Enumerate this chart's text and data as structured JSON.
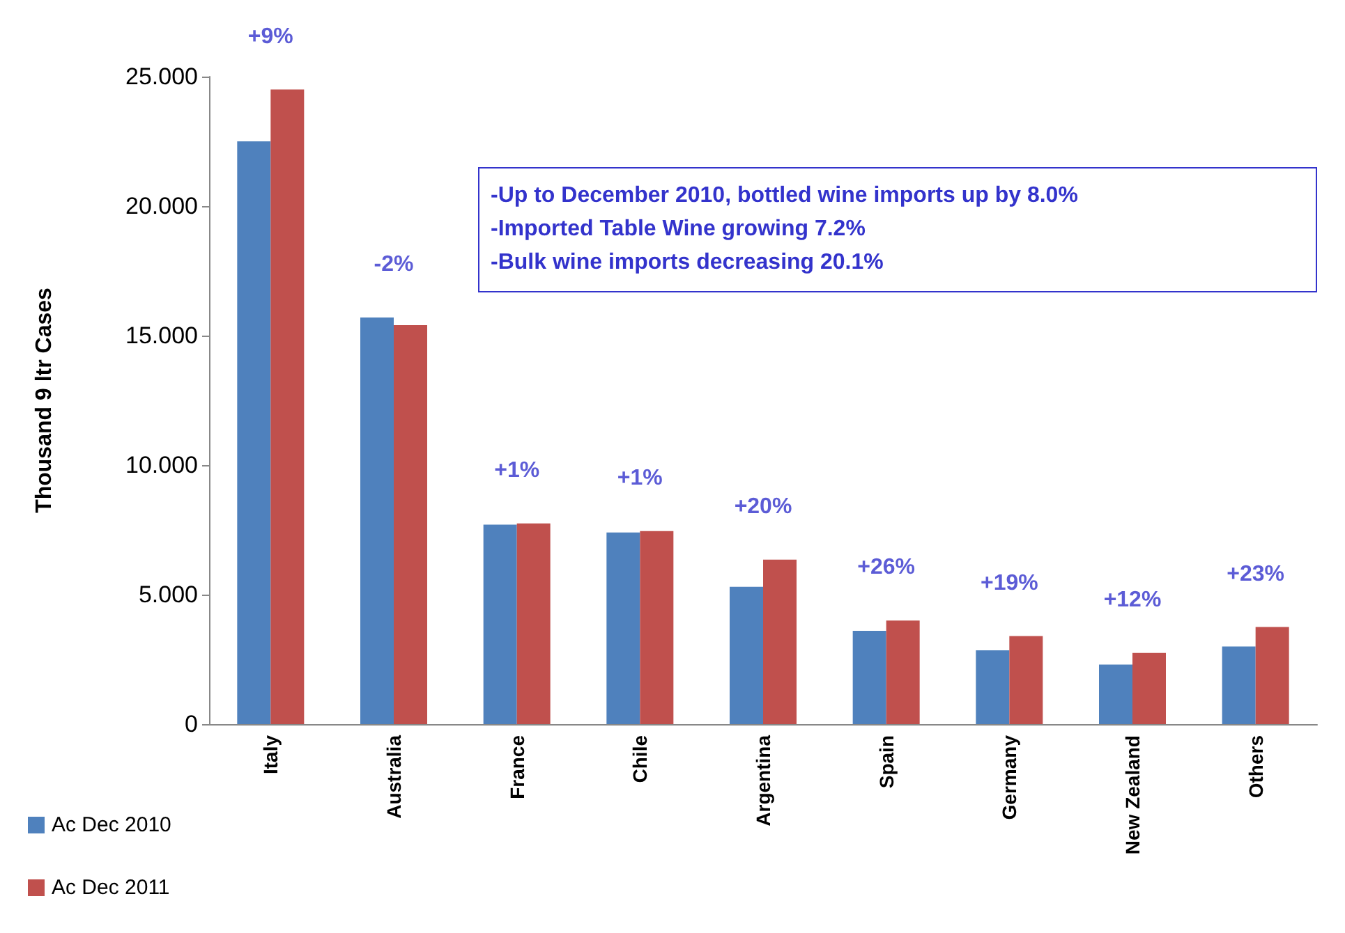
{
  "chart_data": {
    "type": "bar",
    "ylabel": "Thousand 9 ltr Cases",
    "categories": [
      "Italy",
      "Australia",
      "France",
      "Chile",
      "Argentina",
      "Spain",
      "Germany",
      "New Zealand",
      "Others"
    ],
    "series": [
      {
        "name": "Ac Dec 2010",
        "color": "#4f81bd",
        "values": [
          22.5,
          15.7,
          7.7,
          7.4,
          5.3,
          3.6,
          2.85,
          2.3,
          3.0
        ]
      },
      {
        "name": "Ac Dec 2011",
        "color": "#c0504d",
        "values": [
          24.5,
          15.4,
          7.75,
          7.45,
          6.35,
          4.0,
          3.4,
          2.75,
          3.75
        ]
      }
    ],
    "ylim": [
      0,
      25
    ],
    "yticks": [
      {
        "value": 0,
        "label": "0"
      },
      {
        "value": 5,
        "label": "5.000"
      },
      {
        "value": 10,
        "label": "10.000"
      },
      {
        "value": 15,
        "label": "15.000"
      },
      {
        "value": 20,
        "label": "20.000"
      },
      {
        "value": 25,
        "label": "25.000"
      }
    ],
    "annotations": [
      {
        "text": "+9%",
        "x": "Italy",
        "y": 24.5
      },
      {
        "text": "-2%",
        "x": "Australia",
        "y": 15.7
      },
      {
        "text": "+1%",
        "x": "France",
        "y": 7.75
      },
      {
        "text": "+1%",
        "x": "Chile",
        "y": 7.45
      },
      {
        "text": "+20%",
        "x": "Argentina",
        "y": 6.35
      },
      {
        "text": "+26%",
        "x": "Spain",
        "y": 4.0
      },
      {
        "text": "+19%",
        "x": "Germany",
        "y": 3.4
      },
      {
        "text": "+12%",
        "x": "New Zealand",
        "y": 2.75
      },
      {
        "text": "+23%",
        "x": "Others",
        "y": 3.75
      },
      "-Up to December 2010, bottled wine imports up by 8.0%",
      "-Imported Table Wine growing 7.2%",
      "-Bulk wine imports decreasing 20.1%"
    ],
    "grid": false,
    "legend": "bottom left"
  }
}
